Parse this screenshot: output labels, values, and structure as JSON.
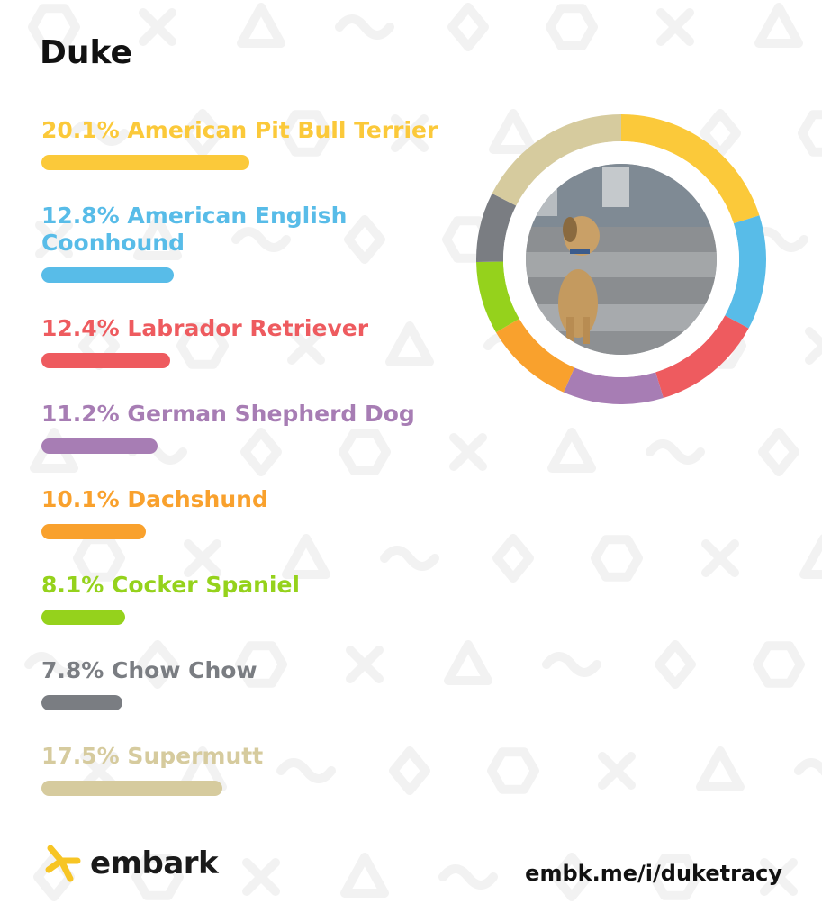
{
  "dog_name": "Duke",
  "share_url": "embk.me/i/duketracy",
  "brand": {
    "name": "embark",
    "logo_color": "#F7C525"
  },
  "photo": {
    "description_icon": "dog-photo"
  },
  "chart_data": {
    "type": "pie",
    "variant": "donut",
    "categories": [
      "American Pit Bull Terrier",
      "American English Coonhound",
      "Labrador Retriever",
      "German Shepherd Dog",
      "Dachshund",
      "Cocker Spaniel",
      "Chow Chow",
      "Supermutt"
    ],
    "values": [
      20.1,
      12.8,
      12.4,
      11.2,
      10.1,
      8.1,
      7.8,
      17.5
    ],
    "labels": [
      "20.1% American Pit Bull Terrier",
      "12.8% American English Coonhound",
      "12.4% Labrador Retriever",
      "11.2% German Shepherd Dog",
      "10.1% Dachshund",
      "8.1% Cocker Spaniel",
      "7.8% Chow Chow",
      "17.5% Supermutt"
    ],
    "colors": [
      "#FBC93A",
      "#58BCE8",
      "#EE5B5F",
      "#A77DB4",
      "#F9A12D",
      "#95D21C",
      "#7A7D82",
      "#D6CB9E"
    ],
    "legend": "left"
  }
}
